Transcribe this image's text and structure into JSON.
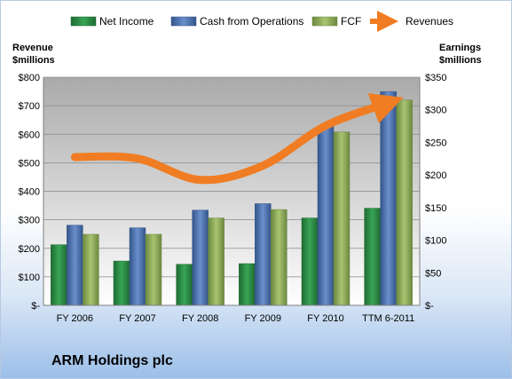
{
  "chart_data": {
    "type": "bar",
    "title": "ARM Holdings plc",
    "categories": [
      "FY 2006",
      "FY 2007",
      "FY 2008",
      "FY 2009",
      "FY 2010",
      "TTM 6-2011"
    ],
    "left_axis": {
      "label_line1": "Revenue",
      "label_line2": "$millions",
      "range": [
        0,
        800
      ],
      "tick_labels": [
        "$-",
        "$100",
        "$200",
        "$300",
        "$400",
        "$500",
        "$600",
        "$700",
        "$800"
      ]
    },
    "right_axis": {
      "label_line1": "Earnings",
      "label_line2": "$millions",
      "range": [
        0,
        350
      ],
      "tick_labels": [
        "$-",
        "$50",
        "$100",
        "$150",
        "$200",
        "$250",
        "$300",
        "$350"
      ]
    },
    "series": [
      {
        "name": "Net Income",
        "kind": "bar",
        "axis": "right",
        "color": "#2e8b45",
        "values": [
          93,
          68,
          63,
          64,
          134,
          149
        ]
      },
      {
        "name": "Cash from Operations",
        "kind": "bar",
        "axis": "right",
        "color": "#4f77b4",
        "values": [
          123,
          119,
          146,
          156,
          274,
          328
        ]
      },
      {
        "name": "FCF",
        "kind": "bar",
        "axis": "right",
        "color": "#8fad5a",
        "values": [
          109,
          109,
          134,
          147,
          266,
          315
        ]
      },
      {
        "name": "Revenues",
        "kind": "line",
        "axis": "left",
        "color": "#f07d23",
        "values": [
          520,
          515,
          440,
          490,
          630,
          710
        ]
      }
    ],
    "legend_position": "top",
    "grid": true
  }
}
